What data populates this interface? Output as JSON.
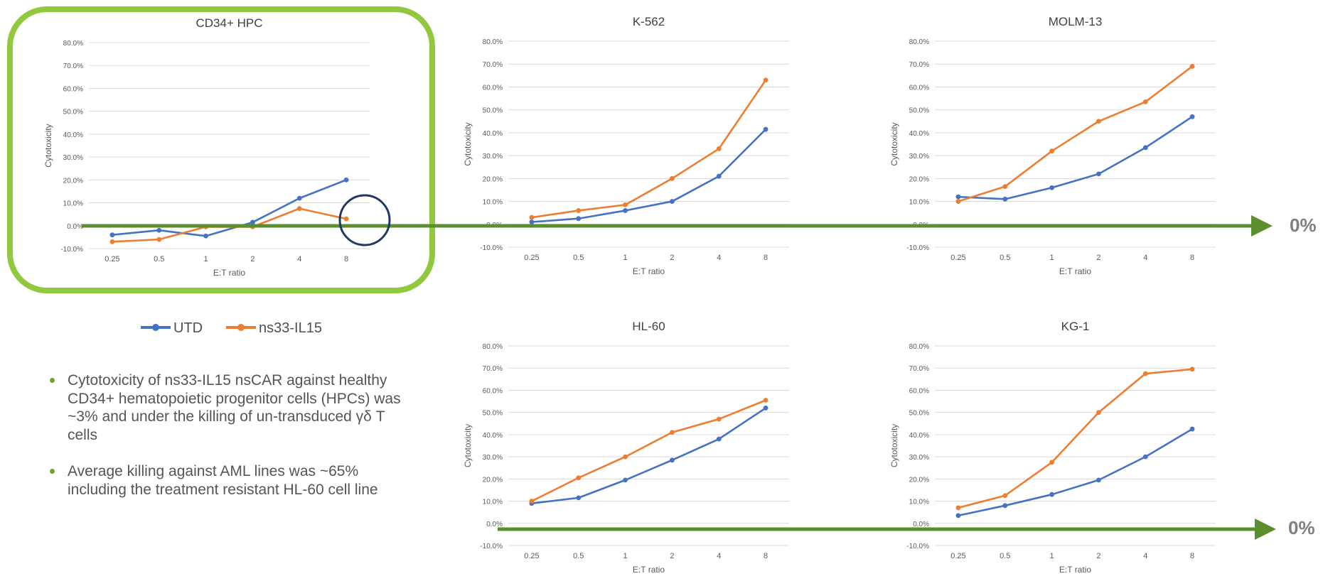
{
  "chart_data": [
    {
      "type": "line",
      "title": "CD34+ HPC",
      "xlabel": "E:T ratio",
      "ylabel": "Cytotoxicity",
      "categories": [
        "0.25",
        "0.5",
        "1",
        "2",
        "4",
        "8"
      ],
      "ylim": [
        -10,
        80
      ],
      "y_ticks": [
        "-10.0%",
        "0.0%",
        "10.0%",
        "20.0%",
        "30.0%",
        "40.0%",
        "50.0%",
        "60.0%",
        "70.0%",
        "80.0%"
      ],
      "grid": true,
      "series": [
        {
          "name": "UTD",
          "values": [
            -4,
            -2,
            -4.5,
            1.5,
            12,
            20
          ]
        },
        {
          "name": "ns33-IL15",
          "values": [
            -7,
            -6,
            -0.5,
            -0.5,
            7.5,
            3
          ]
        }
      ]
    },
    {
      "type": "line",
      "title": "K-562",
      "xlabel": "E:T ratio",
      "ylabel": "Cytotoxicity",
      "categories": [
        "0.25",
        "0.5",
        "1",
        "2",
        "4",
        "8"
      ],
      "ylim": [
        -10,
        80
      ],
      "y_ticks": [
        "-10.0%",
        "0.0%",
        "10.0%",
        "20.0%",
        "30.0%",
        "40.0%",
        "50.0%",
        "60.0%",
        "70.0%",
        "80.0%"
      ],
      "grid": true,
      "series": [
        {
          "name": "UTD",
          "values": [
            1,
            2.5,
            6,
            10,
            21,
            41.5
          ]
        },
        {
          "name": "ns33-IL15",
          "values": [
            3,
            6,
            8.5,
            20,
            33,
            63
          ]
        }
      ]
    },
    {
      "type": "line",
      "title": "MOLM-13",
      "xlabel": "E:T ratio",
      "ylabel": "Cytotoxicity",
      "categories": [
        "0.25",
        "0.5",
        "1",
        "2",
        "4",
        "8"
      ],
      "ylim": [
        -10,
        80
      ],
      "y_ticks": [
        "-10.0%",
        "0.0%",
        "10.0%",
        "20.0%",
        "30.0%",
        "40.0%",
        "50.0%",
        "60.0%",
        "70.0%",
        "80.0%"
      ],
      "grid": true,
      "series": [
        {
          "name": "UTD",
          "values": [
            12,
            11,
            16,
            22,
            33.5,
            47
          ]
        },
        {
          "name": "ns33-IL15",
          "values": [
            10,
            16.5,
            32,
            45,
            53.5,
            69
          ]
        }
      ]
    },
    {
      "type": "line",
      "title": "HL-60",
      "xlabel": "E:T ratio",
      "ylabel": "Cytotoxicity",
      "categories": [
        "0.25",
        "0.5",
        "1",
        "2",
        "4",
        "8"
      ],
      "ylim": [
        -10,
        80
      ],
      "y_ticks": [
        "-10.0%",
        "0.0%",
        "10.0%",
        "20.0%",
        "30.0%",
        "40.0%",
        "50.0%",
        "60.0%",
        "70.0%",
        "80.0%"
      ],
      "grid": true,
      "series": [
        {
          "name": "UTD",
          "values": [
            9,
            11.5,
            19.5,
            28.5,
            38,
            52
          ]
        },
        {
          "name": "ns33-IL15",
          "values": [
            10,
            20.5,
            30,
            41,
            47,
            55.5
          ]
        }
      ]
    },
    {
      "type": "line",
      "title": "KG-1",
      "xlabel": "E:T ratio",
      "ylabel": "Cytotoxicity",
      "categories": [
        "0.25",
        "0.5",
        "1",
        "2",
        "4",
        "8"
      ],
      "ylim": [
        -10,
        80
      ],
      "y_ticks": [
        "-10.0%",
        "0.0%",
        "10.0%",
        "20.0%",
        "30.0%",
        "40.0%",
        "50.0%",
        "60.0%",
        "70.0%",
        "80.0%"
      ],
      "grid": true,
      "series": [
        {
          "name": "UTD",
          "values": [
            3.5,
            8,
            13,
            19.5,
            30,
            42.5
          ]
        },
        {
          "name": "ns33-IL15",
          "values": [
            7,
            12.5,
            27.5,
            50,
            67.5,
            69.5
          ]
        }
      ]
    }
  ],
  "legend": {
    "items": [
      {
        "label": "UTD",
        "color": "#4472c4"
      },
      {
        "label": "ns33-IL15",
        "color": "#ed7d31"
      }
    ],
    "placement": "below first chart"
  },
  "bullets": [
    "Cytotoxicity of ns33-IL15 nsCAR against healthy CD34+ hematopoietic progenitor cells (HPCs) was ~3% and under the killing of un-transduced γδ T cells",
    "Average killing against AML lines was ~65% including the treatment resistant HL-60 cell line"
  ],
  "zero_labels": {
    "top": "0%",
    "bottom": "0%"
  },
  "colors": {
    "utd": "#4472c4",
    "ns33": "#ed7d31",
    "zero_arrow": "#5b8f2e",
    "highlight": "#92c83e",
    "circle": "#1f3864",
    "grid": "#d9d9d9"
  }
}
